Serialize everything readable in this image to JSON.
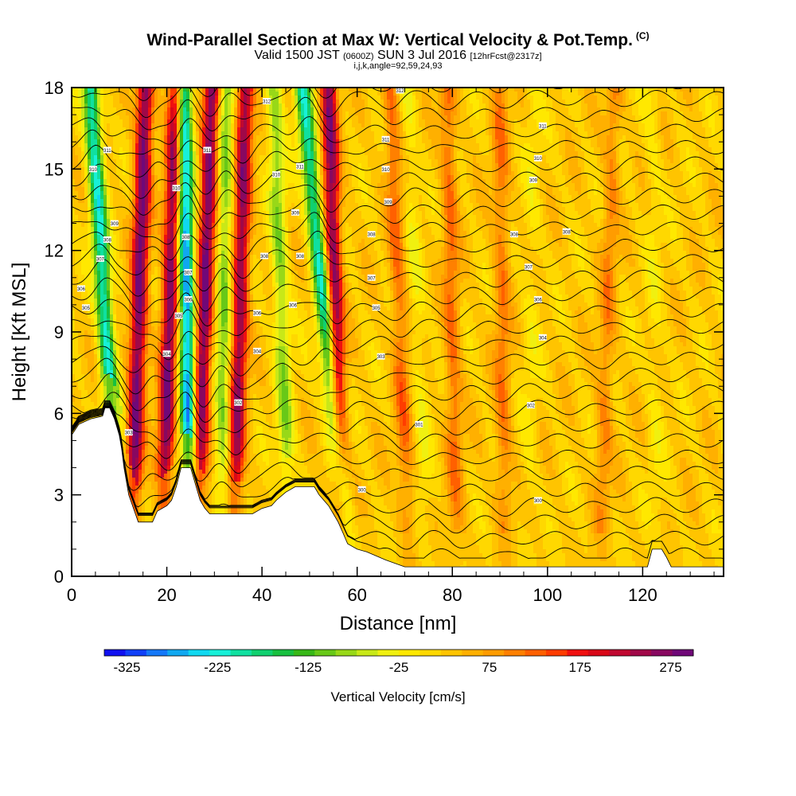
{
  "header": {
    "title": "Wind-Parallel Section at Max W: Vertical Velocity & Pot.Temp.",
    "copyright": "(C)",
    "valid_prefix": "Valid 1500 JST",
    "valid_utc": "(0600Z)",
    "valid_date": "SUN 3 Jul 2016",
    "forecast_info": "[12hrFcst@2317z]",
    "params": "i,j,k,angle=92,59,24,93"
  },
  "chart_data": {
    "type": "heatmap",
    "title": "Wind-Parallel Section at Max W: Vertical Velocity & Pot.Temp.",
    "xlabel": "Distance [nm]",
    "ylabel": "Height [Kft MSL]",
    "xlim": [
      0,
      137
    ],
    "ylim": [
      0,
      18
    ],
    "xticks": [
      0,
      20,
      40,
      60,
      80,
      100,
      120
    ],
    "yticks": [
      0,
      3,
      6,
      9,
      12,
      15,
      18
    ],
    "colorbar": {
      "label": "Vertical Velocity [cm/s]",
      "min": -350,
      "max": 300,
      "tick_values": [
        -325,
        -225,
        -125,
        -25,
        75,
        175,
        275
      ],
      "tick_labels": [
        "-325",
        "-225",
        "-125",
        "-25",
        "75",
        "175",
        "275"
      ],
      "colors": [
        "#1010f0",
        "#1040f8",
        "#1478f8",
        "#10a8f0",
        "#10d8f0",
        "#18f0d8",
        "#10e0a0",
        "#10d070",
        "#18c040",
        "#38b818",
        "#68c818",
        "#98d818",
        "#c8e818",
        "#f0f010",
        "#ffe800",
        "#ffd800",
        "#ffc400",
        "#ffb000",
        "#ff9c00",
        "#ff8000",
        "#ff6000",
        "#ff3c00",
        "#f01010",
        "#d80818",
        "#c00830",
        "#a00848",
        "#880860",
        "#700878"
      ]
    },
    "updraft_bands": [
      {
        "x_bottom": 12.5,
        "x_top": 15.5,
        "peak_cm_s": 260
      },
      {
        "x_bottom": 19.0,
        "x_top": 22.0,
        "peak_cm_s": 250
      },
      {
        "x_bottom": 26.0,
        "x_top": 29.5,
        "peak_cm_s": 260
      },
      {
        "x_bottom": 34.0,
        "x_top": 36.5,
        "peak_cm_s": 230
      },
      {
        "x_bottom": 57.0,
        "x_top": 54.0,
        "peak_cm_s": 240
      },
      {
        "x_bottom": 71.0,
        "x_top": 67.0,
        "peak_cm_s": 90
      },
      {
        "x_bottom": 81.0,
        "x_top": 79.0,
        "peak_cm_s": 90
      },
      {
        "x_bottom": 91.0,
        "x_top": 90.0,
        "peak_cm_s": 80
      },
      {
        "x_bottom": 111.0,
        "x_top": 114.0,
        "peak_cm_s": 70
      }
    ],
    "downdraft_bands": [
      {
        "x_bottom": 10.5,
        "x_top": 4.0,
        "peak_cm_s": -240
      },
      {
        "x_bottom": 25.0,
        "x_top": 23.5,
        "peak_cm_s": -300
      },
      {
        "x_bottom": 31.5,
        "x_top": 32.5,
        "peak_cm_s": -120
      },
      {
        "x_bottom": 46.0,
        "x_top": 42.5,
        "peak_cm_s": -110
      },
      {
        "x_bottom": 58.5,
        "x_top": 48.5,
        "peak_cm_s": -230
      },
      {
        "x_bottom": 75.0,
        "x_top": 70.5,
        "peak_cm_s": -40
      },
      {
        "x_bottom": 96.0,
        "x_top": 97.0,
        "peak_cm_s": -30
      },
      {
        "x_bottom": 123.0,
        "x_top": 122.0,
        "peak_cm_s": -30
      }
    ],
    "terrain_kft": [
      [
        0,
        5.2
      ],
      [
        1.5,
        5.6
      ],
      [
        4,
        5.8
      ],
      [
        6.5,
        5.9
      ],
      [
        7,
        6.2
      ],
      [
        8,
        6.2
      ],
      [
        9,
        5.8
      ],
      [
        10,
        5.2
      ],
      [
        10.5,
        4.7
      ],
      [
        11,
        4.0
      ],
      [
        12,
        3.0
      ],
      [
        13,
        2.5
      ],
      [
        14,
        2.0
      ],
      [
        17,
        2.0
      ],
      [
        18,
        2.4
      ],
      [
        20,
        2.6
      ],
      [
        21,
        2.8
      ],
      [
        22,
        3.3
      ],
      [
        23,
        4.0
      ],
      [
        25,
        4.0
      ],
      [
        26,
        3.4
      ],
      [
        27,
        2.8
      ],
      [
        28,
        2.5
      ],
      [
        29,
        2.3
      ],
      [
        38,
        2.3
      ],
      [
        40,
        2.5
      ],
      [
        42,
        2.6
      ],
      [
        43,
        2.8
      ],
      [
        45,
        3.1
      ],
      [
        47,
        3.3
      ],
      [
        51,
        3.3
      ],
      [
        52,
        3.0
      ],
      [
        54,
        2.6
      ],
      [
        55,
        2.3
      ],
      [
        56,
        2.0
      ],
      [
        57,
        1.6
      ],
      [
        58,
        1.2
      ],
      [
        60,
        1.0
      ],
      [
        62,
        0.9
      ],
      [
        66,
        0.6
      ],
      [
        70,
        0.35
      ],
      [
        115,
        0.35
      ],
      [
        121,
        0.35
      ],
      [
        122,
        1.0
      ],
      [
        124,
        1.0
      ],
      [
        125,
        0.7
      ],
      [
        126,
        0.35
      ],
      [
        137,
        0.35
      ]
    ],
    "theta_contours_count": 30,
    "contour_labels": [
      {
        "x": 7.5,
        "y": 15.7,
        "text": "311"
      },
      {
        "x": 4.5,
        "y": 15.0,
        "text": "310"
      },
      {
        "x": 9.0,
        "y": 13.0,
        "text": "309"
      },
      {
        "x": 7.5,
        "y": 12.4,
        "text": "308"
      },
      {
        "x": 6.0,
        "y": 11.7,
        "text": "307"
      },
      {
        "x": 2.0,
        "y": 10.6,
        "text": "306"
      },
      {
        "x": 3.0,
        "y": 9.9,
        "text": "305"
      },
      {
        "x": 12.0,
        "y": 5.3,
        "text": "303"
      },
      {
        "x": 28.5,
        "y": 15.7,
        "text": "311"
      },
      {
        "x": 22.0,
        "y": 14.3,
        "text": "310"
      },
      {
        "x": 24.0,
        "y": 12.5,
        "text": "308"
      },
      {
        "x": 24.5,
        "y": 11.2,
        "text": "307"
      },
      {
        "x": 24.5,
        "y": 10.2,
        "text": "306"
      },
      {
        "x": 22.5,
        "y": 9.6,
        "text": "305"
      },
      {
        "x": 20.0,
        "y": 8.2,
        "text": "304"
      },
      {
        "x": 41.0,
        "y": 17.5,
        "text": "312"
      },
      {
        "x": 43.0,
        "y": 14.8,
        "text": "310"
      },
      {
        "x": 40.5,
        "y": 11.8,
        "text": "308"
      },
      {
        "x": 39.0,
        "y": 9.7,
        "text": "306"
      },
      {
        "x": 39.0,
        "y": 8.3,
        "text": "304"
      },
      {
        "x": 35.0,
        "y": 6.4,
        "text": "302"
      },
      {
        "x": 48.0,
        "y": 15.1,
        "text": "311"
      },
      {
        "x": 47.0,
        "y": 13.4,
        "text": "309"
      },
      {
        "x": 48.0,
        "y": 11.8,
        "text": "308"
      },
      {
        "x": 46.5,
        "y": 10.0,
        "text": "306"
      },
      {
        "x": 61.0,
        "y": 3.2,
        "text": "300"
      },
      {
        "x": 69.0,
        "y": 17.9,
        "text": "312"
      },
      {
        "x": 66.0,
        "y": 16.1,
        "text": "311"
      },
      {
        "x": 66.0,
        "y": 15.0,
        "text": "310"
      },
      {
        "x": 66.5,
        "y": 13.8,
        "text": "309"
      },
      {
        "x": 63.0,
        "y": 12.6,
        "text": "308"
      },
      {
        "x": 63.0,
        "y": 11.0,
        "text": "307"
      },
      {
        "x": 64.0,
        "y": 9.9,
        "text": "305"
      },
      {
        "x": 65.0,
        "y": 8.1,
        "text": "303"
      },
      {
        "x": 73.0,
        "y": 5.6,
        "text": "301"
      },
      {
        "x": 99.0,
        "y": 16.6,
        "text": "311"
      },
      {
        "x": 98.0,
        "y": 15.4,
        "text": "310"
      },
      {
        "x": 97.0,
        "y": 14.6,
        "text": "309"
      },
      {
        "x": 93.0,
        "y": 12.6,
        "text": "308"
      },
      {
        "x": 96.0,
        "y": 11.4,
        "text": "307"
      },
      {
        "x": 104.0,
        "y": 12.7,
        "text": "308"
      },
      {
        "x": 98.0,
        "y": 10.2,
        "text": "306"
      },
      {
        "x": 99.0,
        "y": 8.8,
        "text": "304"
      },
      {
        "x": 96.5,
        "y": 6.3,
        "text": "302"
      },
      {
        "x": 98.0,
        "y": 2.8,
        "text": "300"
      }
    ]
  }
}
